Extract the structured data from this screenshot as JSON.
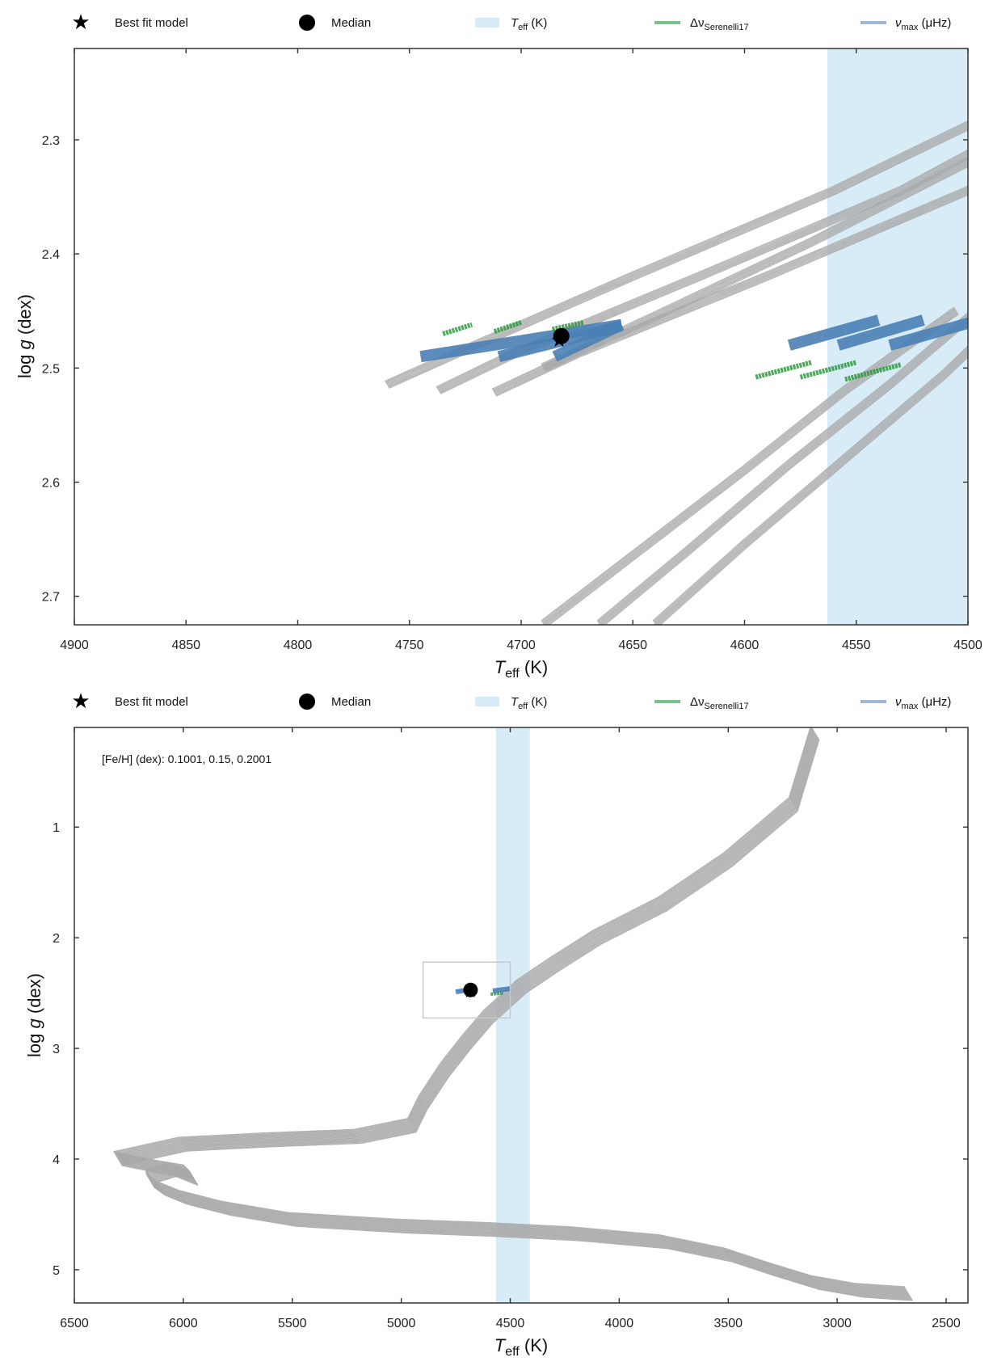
{
  "legend": {
    "best_fit": "Best fit model",
    "median": "Median",
    "teff_sym": "T",
    "teff_sub": "eff",
    "teff_unit": " (K)",
    "dnu_sym": "Δν",
    "dnu_sub": "Serenelli17",
    "numax_sym": "ν",
    "numax_sub": "max",
    "numax_unit": " (μHz)",
    "colors": {
      "track": "#a8a8a8",
      "teff_band": "#d8ecf8",
      "dnu": "#2e9a3e",
      "numax": "#4a7fb5",
      "star": "#000000"
    }
  },
  "chart_data": [
    {
      "type": "line",
      "xlabel_sym": "T",
      "xlabel_sub": "eff",
      "xlabel_unit": " (K)",
      "ylabel_pre": "log ",
      "ylabel_sym": "g",
      "ylabel_unit": " (dex)",
      "xlim": [
        4900,
        4500
      ],
      "ylim": [
        2.725,
        2.22
      ],
      "xticks": [
        "4900",
        "4850",
        "4800",
        "4750",
        "4700",
        "4650",
        "4600",
        "4550",
        "4500"
      ],
      "yticks": [
        "2.3",
        "2.4",
        "2.5",
        "2.6",
        "2.7"
      ],
      "teff_band": [
        4563,
        4500
      ],
      "median": {
        "teff": 4682,
        "logg": 2.472
      },
      "best_fit": {
        "teff": 4683,
        "logg": 2.475
      },
      "tracks": [
        {
          "x": [
            4760,
            4720,
            4650,
            4560,
            4460
          ],
          "y": [
            2.515,
            2.48,
            2.42,
            2.345,
            2.25
          ]
        },
        {
          "x": [
            4737,
            4700,
            4620,
            4530,
            4440
          ],
          "y": [
            2.52,
            2.485,
            2.42,
            2.345,
            2.25
          ]
        },
        {
          "x": [
            4712,
            4675,
            4590,
            4500,
            4420
          ],
          "y": [
            2.522,
            2.488,
            2.42,
            2.345,
            2.25
          ]
        },
        {
          "x": [
            4690,
            4640,
            4570,
            4510,
            4460
          ],
          "y": [
            2.5,
            2.455,
            2.39,
            2.33,
            2.28
          ]
        },
        {
          "x": [
            4690,
            4650,
            4600,
            4555,
            4505
          ],
          "y": [
            2.725,
            2.665,
            2.59,
            2.52,
            2.45
          ]
        },
        {
          "x": [
            4665,
            4625,
            4580,
            4535,
            4490
          ],
          "y": [
            2.725,
            2.66,
            2.585,
            2.515,
            2.44
          ]
        },
        {
          "x": [
            4640,
            4600,
            4555,
            4510,
            4470
          ],
          "y": [
            2.725,
            2.655,
            2.58,
            2.505,
            2.43
          ]
        }
      ],
      "numax_segments": [
        {
          "x": [
            4745,
            4655
          ],
          "y": [
            2.49,
            2.462
          ]
        },
        {
          "x": [
            4710,
            4655
          ],
          "y": [
            2.49,
            2.463
          ]
        },
        {
          "x": [
            4685,
            4655
          ],
          "y": [
            2.49,
            2.462
          ]
        },
        {
          "x": [
            4580,
            4540
          ],
          "y": [
            2.48,
            2.458
          ]
        },
        {
          "x": [
            4558,
            4520
          ],
          "y": [
            2.48,
            2.458
          ]
        },
        {
          "x": [
            4535,
            4495
          ],
          "y": [
            2.48,
            2.458
          ]
        }
      ],
      "dnu_segments": [
        {
          "x": [
            4735,
            4722
          ],
          "y": [
            2.47,
            2.462
          ]
        },
        {
          "x": [
            4712,
            4700
          ],
          "y": [
            2.468,
            2.46
          ]
        },
        {
          "x": [
            4686,
            4672
          ],
          "y": [
            2.466,
            2.46
          ]
        },
        {
          "x": [
            4595,
            4570
          ],
          "y": [
            2.508,
            2.495
          ]
        },
        {
          "x": [
            4575,
            4550
          ],
          "y": [
            2.508,
            2.495
          ]
        },
        {
          "x": [
            4555,
            4530
          ],
          "y": [
            2.51,
            2.497
          ]
        }
      ]
    },
    {
      "type": "line",
      "xlabel_sym": "T",
      "xlabel_sub": "eff",
      "xlabel_unit": " (K)",
      "ylabel_pre": "log ",
      "ylabel_sym": "g",
      "ylabel_unit": " (dex)",
      "annotation": "[Fe/H] (dex): 0.1001, 0.15, 0.2001",
      "xlim": [
        6500,
        2400
      ],
      "ylim": [
        5.3,
        0.1
      ],
      "xticks": [
        "6500",
        "6000",
        "5500",
        "5000",
        "4500",
        "4000",
        "3500",
        "3000",
        "2500"
      ],
      "yticks": [
        "1",
        "2",
        "3",
        "4",
        "5"
      ],
      "teff_band": [
        4565,
        4410
      ],
      "zoom_box": {
        "x": [
          4900,
          4500
        ],
        "y": [
          2.22,
          2.725
        ]
      },
      "median": {
        "teff": 4682,
        "logg": 2.472
      },
      "best_fit": {
        "teff": 4683,
        "logg": 2.475
      },
      "track": {
        "x": [
          2670,
          2750,
          2900,
          3100,
          3300,
          3500,
          3800,
          4200,
          4600,
          5000,
          5500,
          5800,
          6000,
          6100,
          6150,
          6150,
          6050,
          5950,
          5980,
          6100,
          6300,
          6000,
          5600,
          5200,
          4950,
          4900,
          4800,
          4700,
          4600,
          4450,
          4300,
          4100,
          3800,
          3500,
          3200,
          3100
        ],
        "y": [
          5.22,
          5.21,
          5.19,
          5.12,
          5.0,
          4.87,
          4.75,
          4.68,
          4.64,
          4.61,
          4.55,
          4.45,
          4.35,
          4.27,
          4.2,
          4.16,
          4.1,
          4.18,
          4.12,
          4.08,
          4.0,
          3.87,
          3.83,
          3.8,
          3.7,
          3.5,
          3.2,
          2.95,
          2.72,
          2.45,
          2.25,
          2.0,
          1.7,
          1.3,
          0.8,
          0.15
        ]
      },
      "numax_segments": [
        {
          "x": [
            4750,
            4660
          ],
          "y": [
            2.49,
            2.46
          ]
        },
        {
          "x": [
            4580,
            4500
          ],
          "y": [
            2.48,
            2.46
          ]
        }
      ],
      "dnu_segments": [
        {
          "x": [
            4590,
            4530
          ],
          "y": [
            2.51,
            2.5
          ]
        }
      ]
    }
  ]
}
